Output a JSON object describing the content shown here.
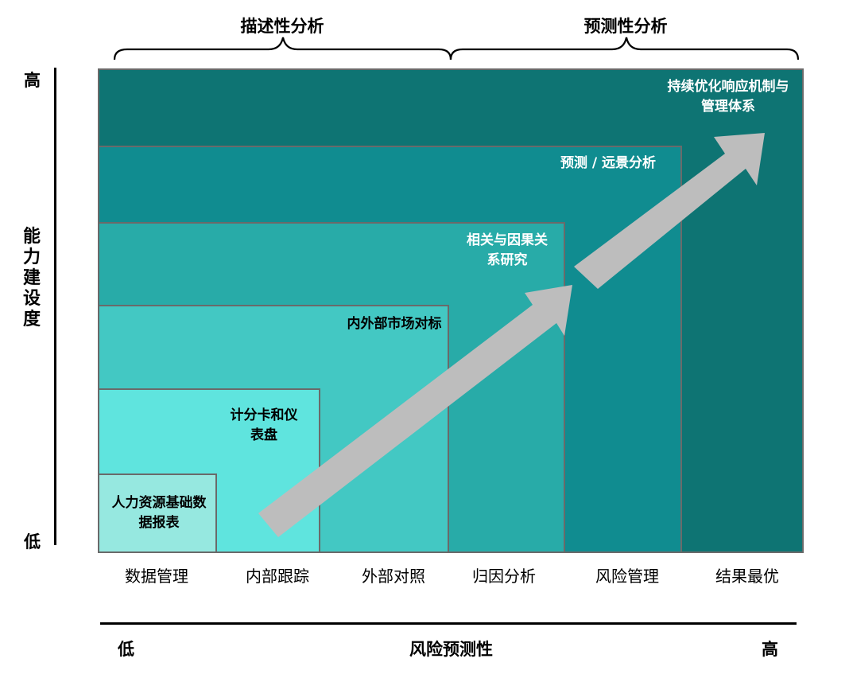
{
  "top_braces": [
    {
      "label": "描述性分析"
    },
    {
      "label": "预测性分析"
    }
  ],
  "y_axis": {
    "title": "能力建设度",
    "high": "高",
    "low": "低"
  },
  "x_axis": {
    "title": "风险预测性",
    "low": "低",
    "high": "高"
  },
  "stages": [
    {
      "label": "人力资源基础数据报表",
      "category": "数据管理",
      "color": "#96e8e0"
    },
    {
      "label": "计分卡和仪表盘",
      "category": "内部跟踪",
      "color": "#5fe4de"
    },
    {
      "label": "内外部市场对标",
      "category": "外部对照",
      "color": "#43c8c3"
    },
    {
      "label": "相关与因果关系研究",
      "category": "归因分析",
      "color": "#28aba8"
    },
    {
      "label": "预测 / 远景分析",
      "category": "风险管理",
      "color": "#108c90"
    },
    {
      "label": "持续优化响应机制与管理体系",
      "category": "结果最优",
      "color": "#0e7473"
    }
  ],
  "arrow_color": "#bdbdbd"
}
